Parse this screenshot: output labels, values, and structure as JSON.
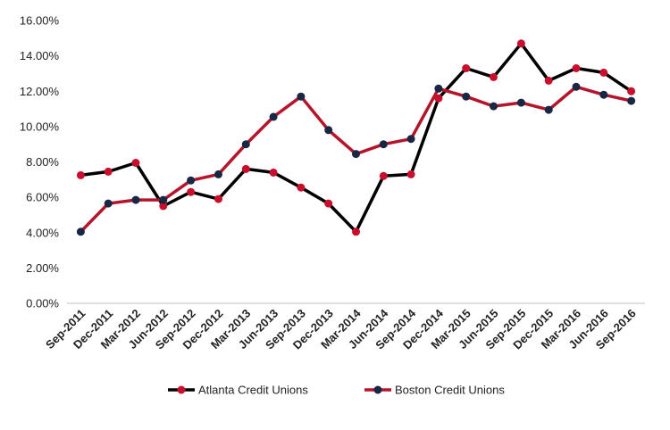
{
  "chart_data": {
    "type": "line",
    "title": "",
    "xlabel": "",
    "ylabel": "",
    "categories": [
      "Sep-2011",
      "Dec-2011",
      "Mar-2012",
      "Jun-2012",
      "Sep-2012",
      "Dec-2012",
      "Mar-2013",
      "Jun-2013",
      "Sep-2013",
      "Dec-2013",
      "Mar-2014",
      "Jun-2014",
      "Sep-2014",
      "Dec-2014",
      "Mar-2015",
      "Jun-2015",
      "Sep-2015",
      "Dec-2015",
      "Mar-2016",
      "Jun-2016",
      "Sep-2016"
    ],
    "ylim": [
      0,
      16
    ],
    "yticks": [
      "0.00%",
      "2.00%",
      "4.00%",
      "6.00%",
      "8.00%",
      "10.00%",
      "12.00%",
      "14.00%",
      "16.00%"
    ],
    "grid": false,
    "legend_position": "bottom",
    "series": [
      {
        "name": "Atlanta Credit Unions",
        "line_color": "#000000",
        "marker_color": "#c8102e",
        "values": [
          7.25,
          7.45,
          7.95,
          5.5,
          6.3,
          5.9,
          7.6,
          7.4,
          6.55,
          5.65,
          4.05,
          7.2,
          7.3,
          11.6,
          13.3,
          12.8,
          14.7,
          12.6,
          13.3,
          13.05,
          12.0
        ]
      },
      {
        "name": "Boston Credit Unions",
        "line_color": "#b5152b",
        "marker_color": "#1a2744",
        "values": [
          4.05,
          5.65,
          5.85,
          5.85,
          6.95,
          7.3,
          9.0,
          10.55,
          11.7,
          9.8,
          8.45,
          9.0,
          9.3,
          12.15,
          11.7,
          11.15,
          11.35,
          10.95,
          12.25,
          11.8,
          11.45
        ]
      }
    ]
  }
}
